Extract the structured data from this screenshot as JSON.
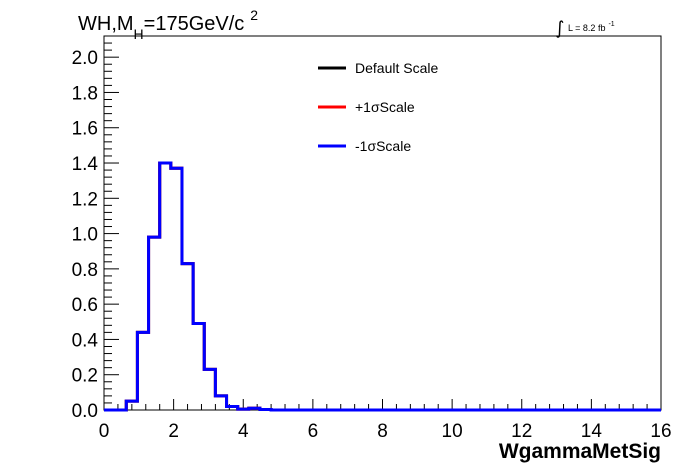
{
  "chart_data": {
    "type": "line",
    "title": {
      "prefix": "WH,M",
      "subscript": "H",
      "main": "=175GeV/c",
      "superscript": "2"
    },
    "lumi": {
      "integral_symbol": "∫",
      "text": "L = 8.2 fb",
      "superscript": "-1"
    },
    "xlabel": "WgammaMetSig",
    "ylabel": "",
    "xlim": [
      0,
      16
    ],
    "ylim": [
      0,
      2.12
    ],
    "x_ticks": [
      {
        "value": 0,
        "label": "0"
      },
      {
        "value": 2,
        "label": "2"
      },
      {
        "value": 4,
        "label": "4"
      },
      {
        "value": 6,
        "label": "6"
      },
      {
        "value": 8,
        "label": "8"
      },
      {
        "value": 10,
        "label": "10"
      },
      {
        "value": 12,
        "label": "12"
      },
      {
        "value": 14,
        "label": "14"
      },
      {
        "value": 16,
        "label": "16"
      }
    ],
    "y_ticks": [
      {
        "value": 0.0,
        "label": "0.0"
      },
      {
        "value": 0.2,
        "label": "0.2"
      },
      {
        "value": 0.4,
        "label": "0.4"
      },
      {
        "value": 0.6,
        "label": "0.6"
      },
      {
        "value": 0.8,
        "label": "0.8"
      },
      {
        "value": 1.0,
        "label": "1.0"
      },
      {
        "value": 1.2,
        "label": "1.2"
      },
      {
        "value": 1.4,
        "label": "1.4"
      },
      {
        "value": 1.6,
        "label": "1.6"
      },
      {
        "value": 1.8,
        "label": "1.8"
      },
      {
        "value": 2.0,
        "label": "2.0"
      }
    ],
    "bin_edges": [
      0.0,
      0.32,
      0.64,
      0.96,
      1.28,
      1.6,
      1.92,
      2.24,
      2.56,
      2.88,
      3.2,
      3.52,
      3.84,
      4.16,
      4.48,
      4.8,
      5.12,
      5.44,
      5.76,
      6.08,
      6.4,
      6.72,
      7.04,
      7.36,
      7.68,
      8.0,
      8.32,
      8.64,
      8.96,
      9.28,
      9.6,
      9.92,
      10.24,
      10.56,
      10.88,
      11.2,
      11.52,
      11.84,
      12.16,
      12.48,
      12.8,
      13.12,
      13.44,
      13.76,
      14.08,
      14.4,
      14.72,
      15.04,
      15.36,
      15.68,
      16.0
    ],
    "series": [
      {
        "name": "Default Scale",
        "color": "#000000",
        "values": [
          0,
          0,
          0.05,
          0.44,
          0.98,
          1.4,
          1.37,
          0.83,
          0.49,
          0.23,
          0.08,
          0.02,
          0.005,
          0.01,
          0.003,
          0,
          0,
          0,
          0,
          0,
          0,
          0,
          0,
          0,
          0,
          0,
          0,
          0,
          0,
          0,
          0,
          0,
          0,
          0,
          0,
          0,
          0,
          0,
          0,
          0,
          0,
          0,
          0,
          0,
          0,
          0,
          0,
          0,
          0,
          0
        ]
      },
      {
        "name": "+1σScale",
        "color": "#ff0000",
        "values": [
          0,
          0,
          0.05,
          0.44,
          0.98,
          1.4,
          1.37,
          0.83,
          0.49,
          0.23,
          0.08,
          0.02,
          0.005,
          0.01,
          0.003,
          0,
          0,
          0,
          0,
          0,
          0,
          0,
          0,
          0,
          0,
          0,
          0,
          0,
          0,
          0,
          0,
          0,
          0,
          0,
          0,
          0,
          0,
          0,
          0,
          0,
          0,
          0,
          0,
          0,
          0,
          0,
          0,
          0,
          0,
          0
        ]
      },
      {
        "name": "-1σScale",
        "color": "#0000ff",
        "values": [
          0,
          0,
          0.05,
          0.44,
          0.98,
          1.4,
          1.37,
          0.83,
          0.49,
          0.23,
          0.08,
          0.02,
          0.005,
          0.01,
          0.003,
          0,
          0,
          0,
          0,
          0,
          0,
          0,
          0,
          0,
          0,
          0,
          0,
          0,
          0,
          0,
          0,
          0,
          0,
          0,
          0,
          0,
          0,
          0,
          0,
          0,
          0,
          0,
          0,
          0,
          0,
          0,
          0,
          0,
          0,
          0
        ]
      }
    ],
    "legend_position": "top-center",
    "grid": false
  }
}
